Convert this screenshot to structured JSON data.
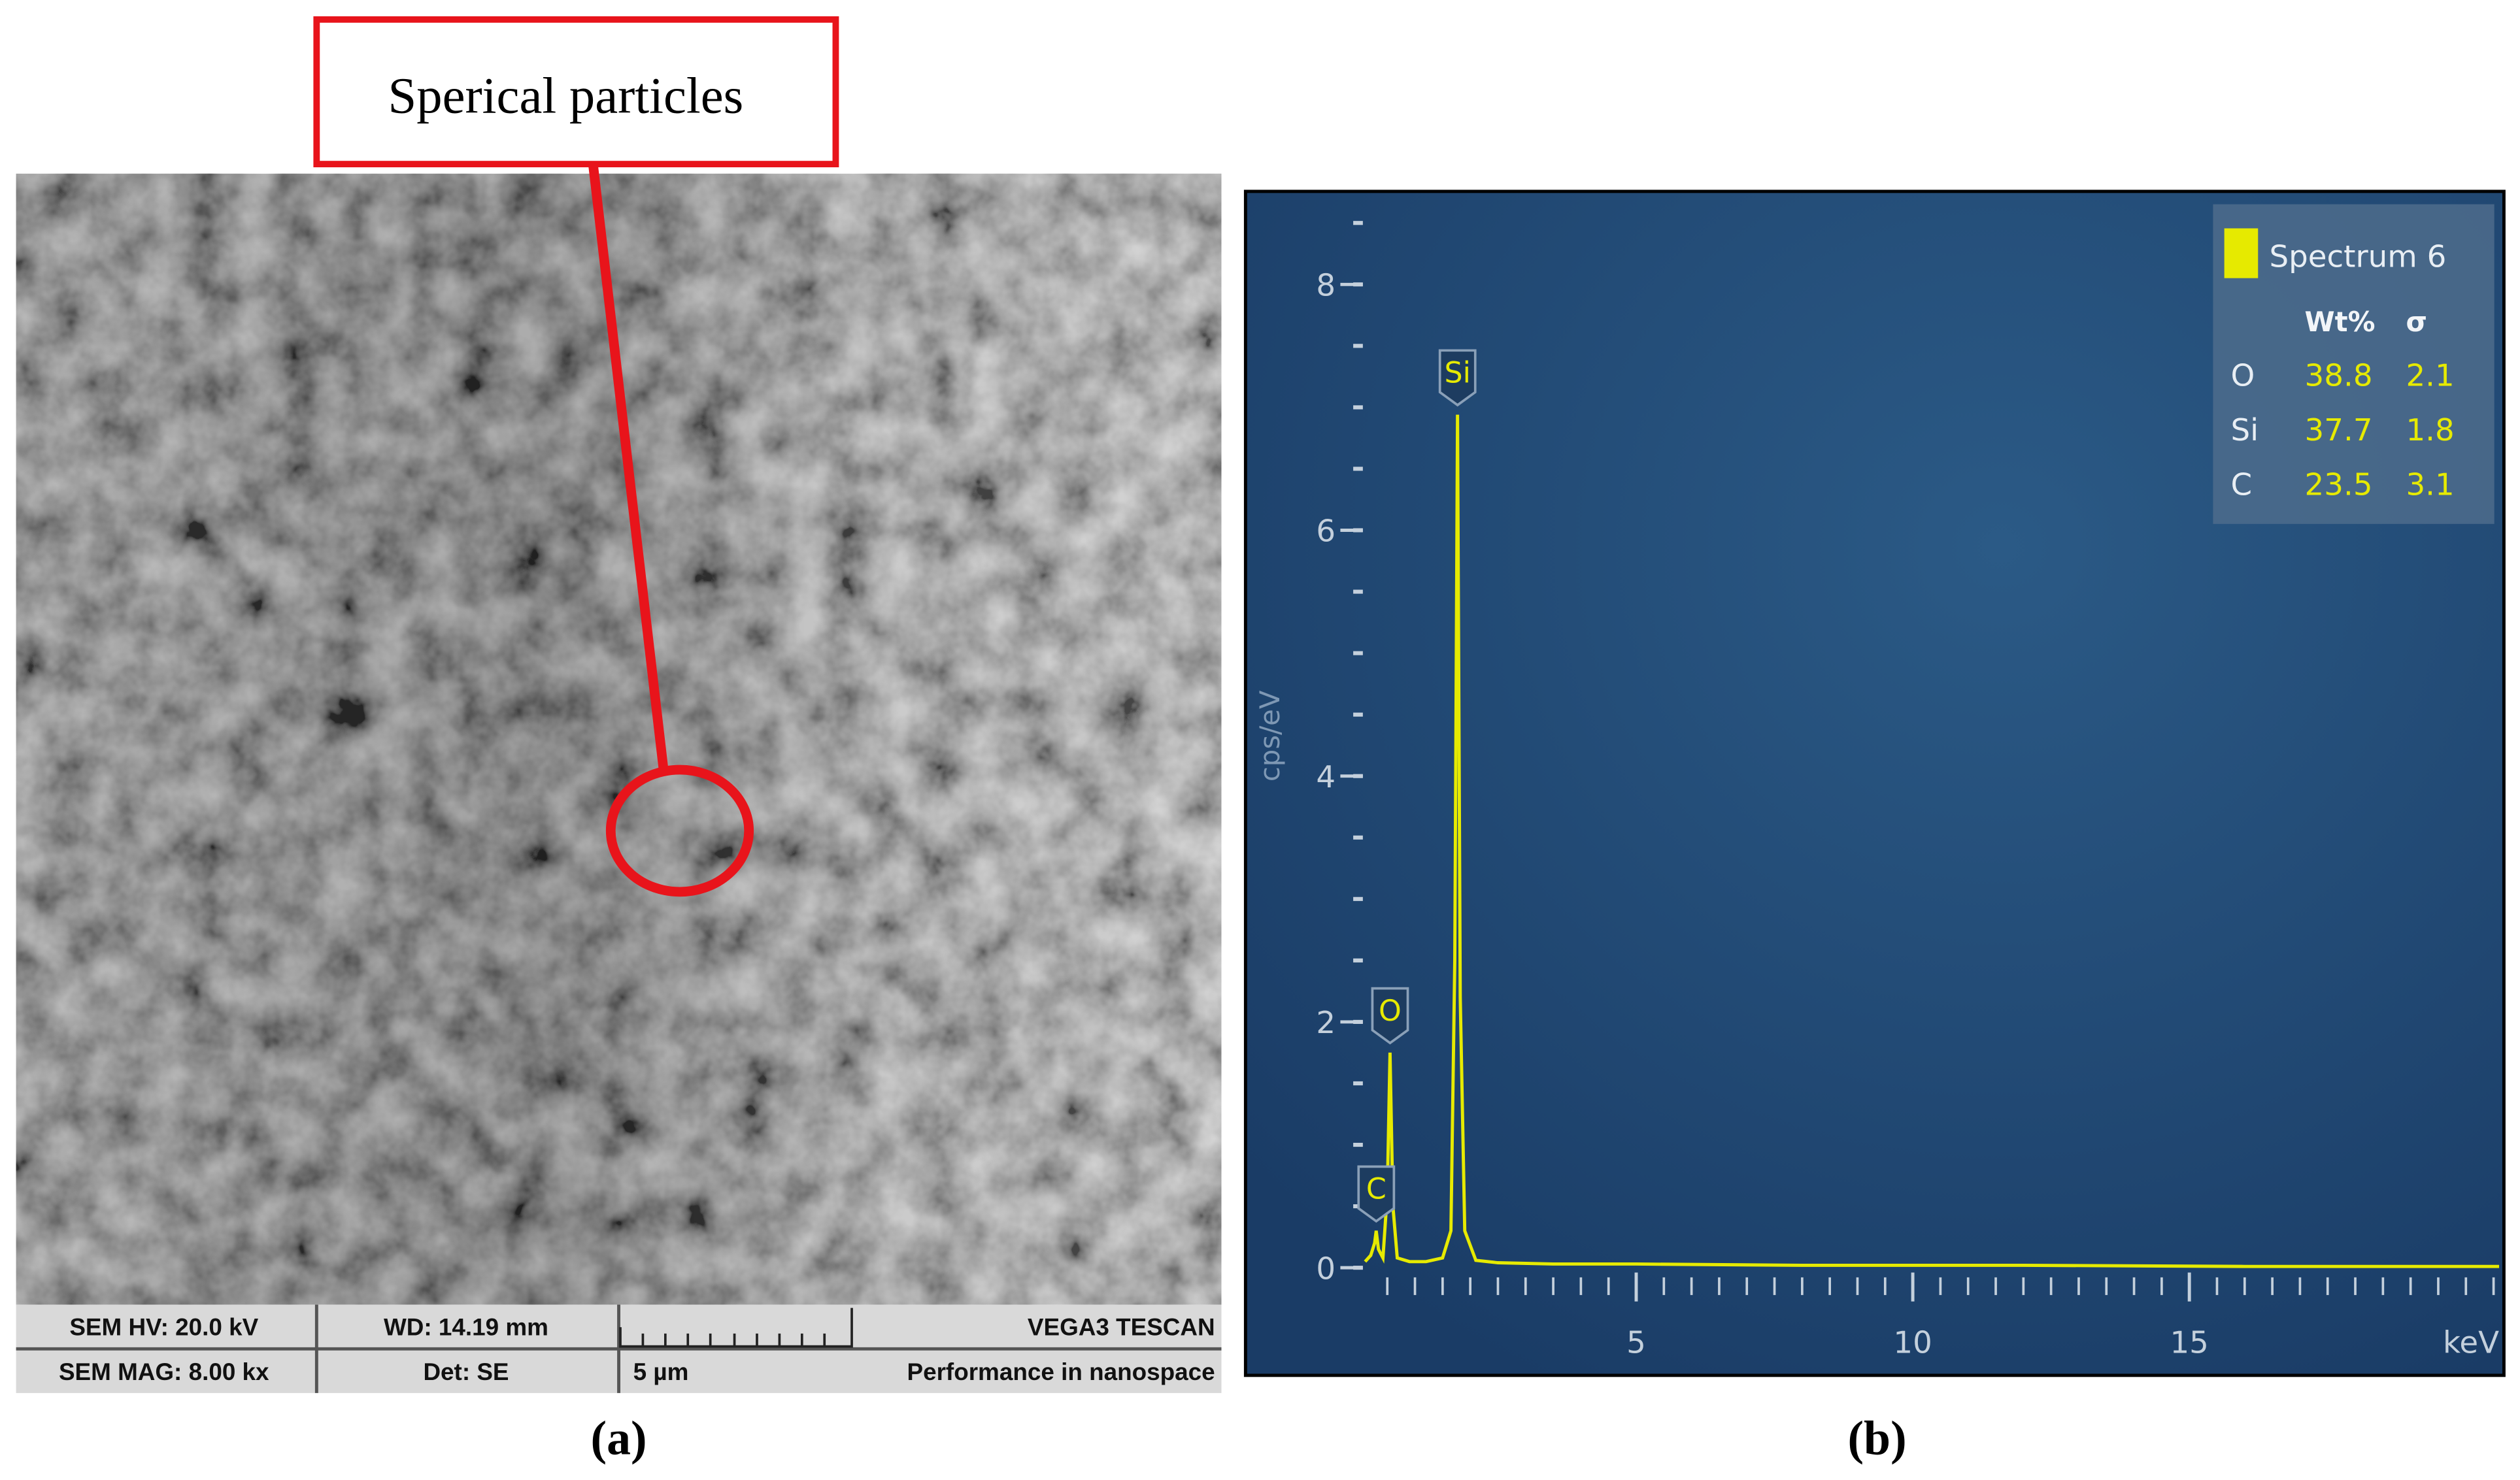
{
  "panels": {
    "a": {
      "callout": "Sperical particles",
      "caption": "(a)",
      "info": [
        [
          "SEM HV: 20.0 kV",
          "WD: 14.19 mm",
          "VEGA3 TESCAN"
        ],
        [
          "SEM MAG: 8.00 kx",
          "Det: SE",
          "5 µm",
          "Performance in nanospace"
        ]
      ]
    },
    "b": {
      "caption": "(b)"
    }
  },
  "chart_data": {
    "type": "line",
    "ylabel": "cps/eV",
    "xlabel": "keV",
    "x": [
      0.1,
      0.2,
      0.27,
      0.3,
      0.34,
      0.42,
      0.5,
      0.55,
      0.6,
      0.68,
      0.9,
      1.2,
      1.5,
      1.65,
      1.72,
      1.77,
      1.82,
      1.9,
      2.1,
      2.5,
      3.5,
      5,
      8,
      12,
      16,
      20.6
    ],
    "series": [
      {
        "name": "Spectrum 6",
        "color": "#e6ea00",
        "values": [
          0.05,
          0.1,
          0.2,
          0.3,
          0.15,
          0.08,
          0.6,
          1.75,
          0.5,
          0.08,
          0.05,
          0.05,
          0.08,
          0.3,
          2.5,
          6.94,
          2.2,
          0.3,
          0.06,
          0.04,
          0.03,
          0.03,
          0.02,
          0.02,
          0.01,
          0.01
        ]
      }
    ],
    "xlim": [
      0,
      20.6
    ],
    "ylim": [
      0,
      8.6
    ],
    "xticks": [
      5,
      10,
      15
    ],
    "yticks": [
      0,
      2,
      4,
      6,
      8
    ],
    "minor_tick_step": 0.5,
    "annotations": [
      {
        "label": "C",
        "x": 0.3,
        "y": 0.3
      },
      {
        "label": "O",
        "x": 0.55,
        "y": 1.75
      },
      {
        "label": "Si",
        "x": 1.77,
        "y": 6.94
      }
    ],
    "legend": {
      "title": "Spectrum 6",
      "columns": [
        "Wt%",
        "σ"
      ],
      "rows": [
        [
          "O",
          38.8,
          2.1
        ],
        [
          "Si",
          37.7,
          1.8
        ],
        [
          "C",
          23.5,
          3.1
        ]
      ]
    }
  }
}
